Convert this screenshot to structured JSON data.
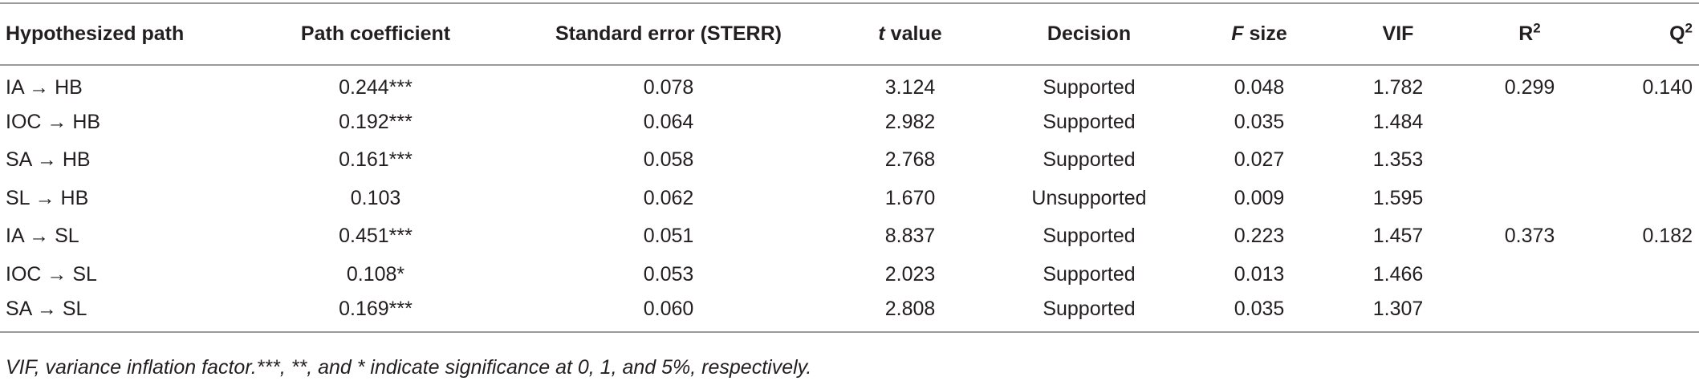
{
  "table": {
    "columns": [
      {
        "text": "Hypothesized path"
      },
      {
        "text": "Path coefficient"
      },
      {
        "text": "Standard error (STERR)"
      },
      {
        "em": "t",
        "text": " value"
      },
      {
        "text": "Decision"
      },
      {
        "em": "F",
        "text": " size"
      },
      {
        "text": "VIF"
      },
      {
        "text": "R",
        "sup": "2"
      },
      {
        "text": "Q",
        "sup": "2"
      }
    ],
    "rows": [
      [
        "IA → HB",
        "0.244***",
        "0.078",
        "3.124",
        "Supported",
        "0.048",
        "1.782",
        "0.299",
        "0.140"
      ],
      [
        "IOC → HB",
        "0.192***",
        "0.064",
        "2.982",
        "Supported",
        "0.035",
        "1.484"
      ],
      [
        "SA → HB",
        "0.161***",
        "0.058",
        "2.768",
        "Supported",
        "0.027",
        "1.353"
      ],
      [
        "SL → HB",
        "0.103",
        "0.062",
        "1.670",
        "Unsupported",
        "0.009",
        "1.595"
      ],
      [
        "IA → SL",
        "0.451***",
        "0.051",
        "8.837",
        "Supported",
        "0.223",
        "1.457",
        "0.373",
        "0.182"
      ],
      [
        "IOC → SL",
        "0.108*",
        "0.053",
        "2.023",
        "Supported",
        "0.013",
        "1.466"
      ],
      [
        "SA → SL",
        "0.169***",
        "0.060",
        "2.808",
        "Supported",
        "0.035",
        "1.307"
      ]
    ],
    "footnote": "VIF, variance inflation factor.***, **, and * indicate significance at 0, 1, and 5%, respectively."
  }
}
